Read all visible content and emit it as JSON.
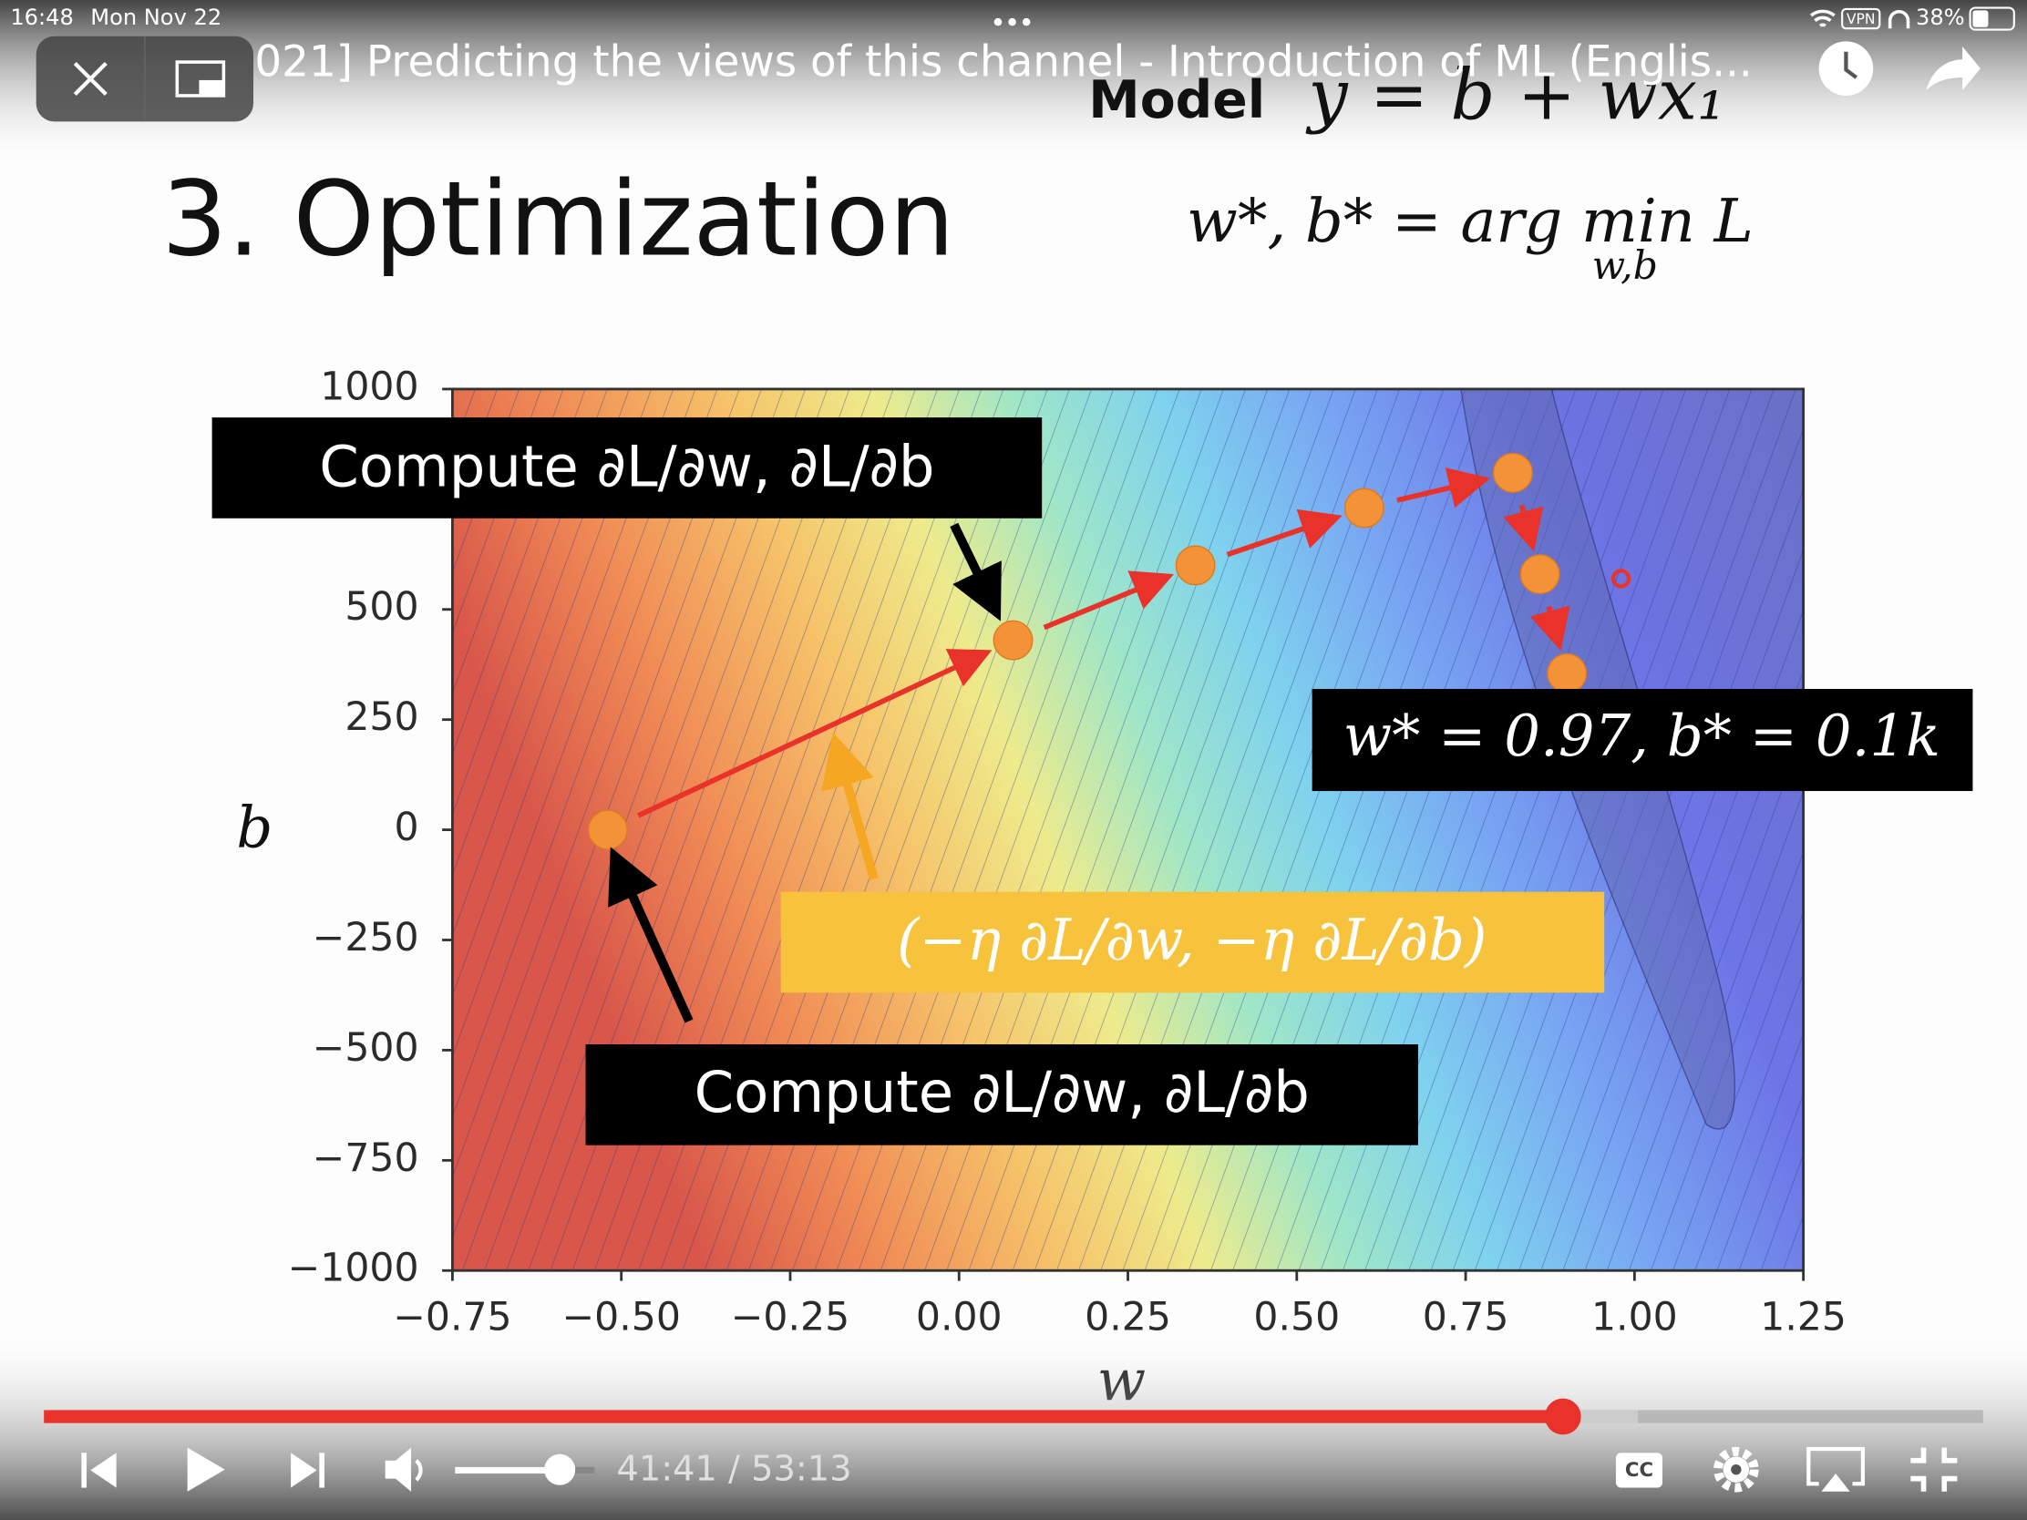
{
  "status_bar": {
    "time": "16:48",
    "date": "Mon Nov 22",
    "vpn": "VPN",
    "battery": "38%"
  },
  "player": {
    "title": "021] Predicting the views of this channel - Introduction of ML (Englis...",
    "time": "41:41 / 53:13",
    "captions": "CC"
  },
  "slide": {
    "heading": "3. Optimization",
    "model_label": "Model",
    "model_formula": "y = b + wx₁",
    "objective": "w*, b* = arg min L",
    "objective_subscript": "w,b",
    "plot": {
      "x_label": "w",
      "y_label": "b",
      "xlim": [
        -0.75,
        1.25
      ],
      "ylim": [
        -1000,
        1000
      ],
      "xticks": [
        {
          "value": -0.75,
          "label": "−0.75"
        },
        {
          "value": -0.5,
          "label": "−0.50"
        },
        {
          "value": -0.25,
          "label": "−0.25"
        },
        {
          "value": 0,
          "label": "0.00"
        },
        0.25,
        {
          "value": 0.5,
          "label": "0.50"
        },
        0.75,
        {
          "value": 1,
          "label": "1.00"
        },
        1.25
      ],
      "yticks": [
        1000,
        500,
        250,
        0,
        {
          "value": -250,
          "label": "−250"
        },
        {
          "value": -500,
          "label": "−500"
        },
        {
          "value": -750,
          "label": "−750"
        },
        {
          "value": -1000,
          "label": "−1000"
        }
      ],
      "points": {
        "w": [
          -0.52,
          0.08,
          0.35,
          0.6,
          0.82,
          0.86,
          0.9
        ],
        "b": [
          0,
          430,
          600,
          730,
          810,
          580,
          355
        ]
      },
      "optimum": {
        "w": 0.98,
        "b": 570
      }
    },
    "annotations": {
      "compute_top": "Compute ∂L/∂w, ∂L/∂b",
      "compute_bottom": "Compute ∂L/∂w, ∂L/∂b",
      "step": "(−η ∂L/∂w, −η ∂L/∂b)",
      "result": "w* = 0.97, b* = 0.1k"
    }
  }
}
